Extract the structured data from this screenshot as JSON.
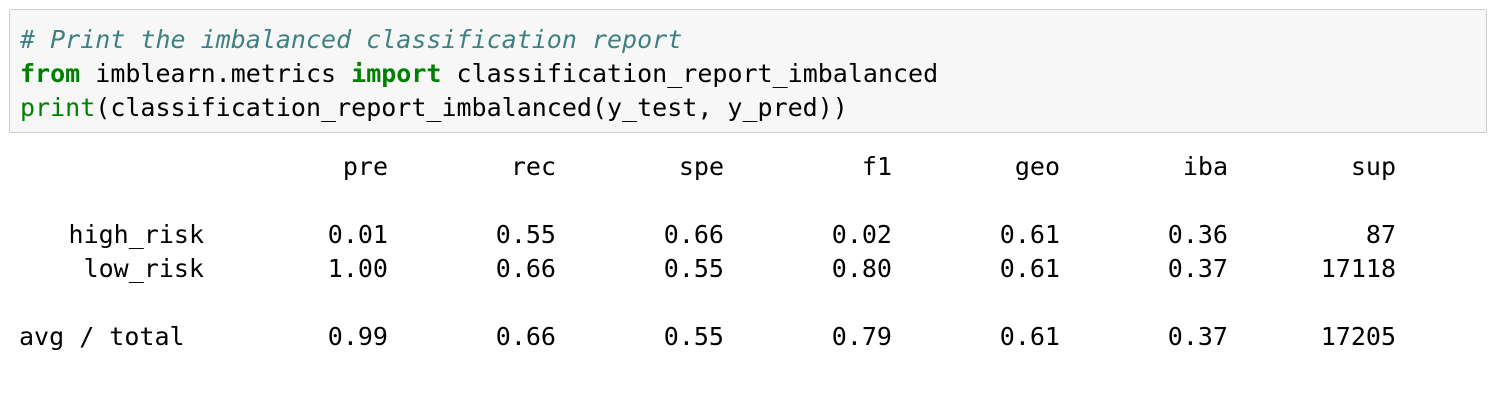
{
  "code_cell": {
    "line1": {
      "comment": "# Print the imbalanced classification report"
    },
    "line2": {
      "kw_from": "from",
      "module": " imblearn.metrics ",
      "kw_import": "import",
      "name": " classification_report_imbalanced"
    },
    "line3": {
      "builtin_print": "print",
      "rest": "(classification_report_imbalanced(y_test, y_pred))"
    }
  },
  "report": {
    "headers": [
      "pre",
      "rec",
      "spe",
      "f1",
      "geo",
      "iba",
      "sup"
    ],
    "rows": [
      {
        "label": "high_risk",
        "values": [
          "0.01",
          "0.55",
          "0.66",
          "0.02",
          "0.61",
          "0.36",
          "87"
        ]
      },
      {
        "label": "low_risk",
        "values": [
          "1.00",
          "0.66",
          "0.55",
          "0.80",
          "0.61",
          "0.37",
          "17118"
        ]
      }
    ],
    "total": {
      "label": "avg / total",
      "values": [
        "0.99",
        "0.66",
        "0.55",
        "0.79",
        "0.61",
        "0.37",
        "17205"
      ]
    }
  },
  "colors": {
    "comment": "#408080",
    "keyword": "#008000",
    "input_background": "#f7f7f7",
    "input_border": "#cfcfcf"
  }
}
